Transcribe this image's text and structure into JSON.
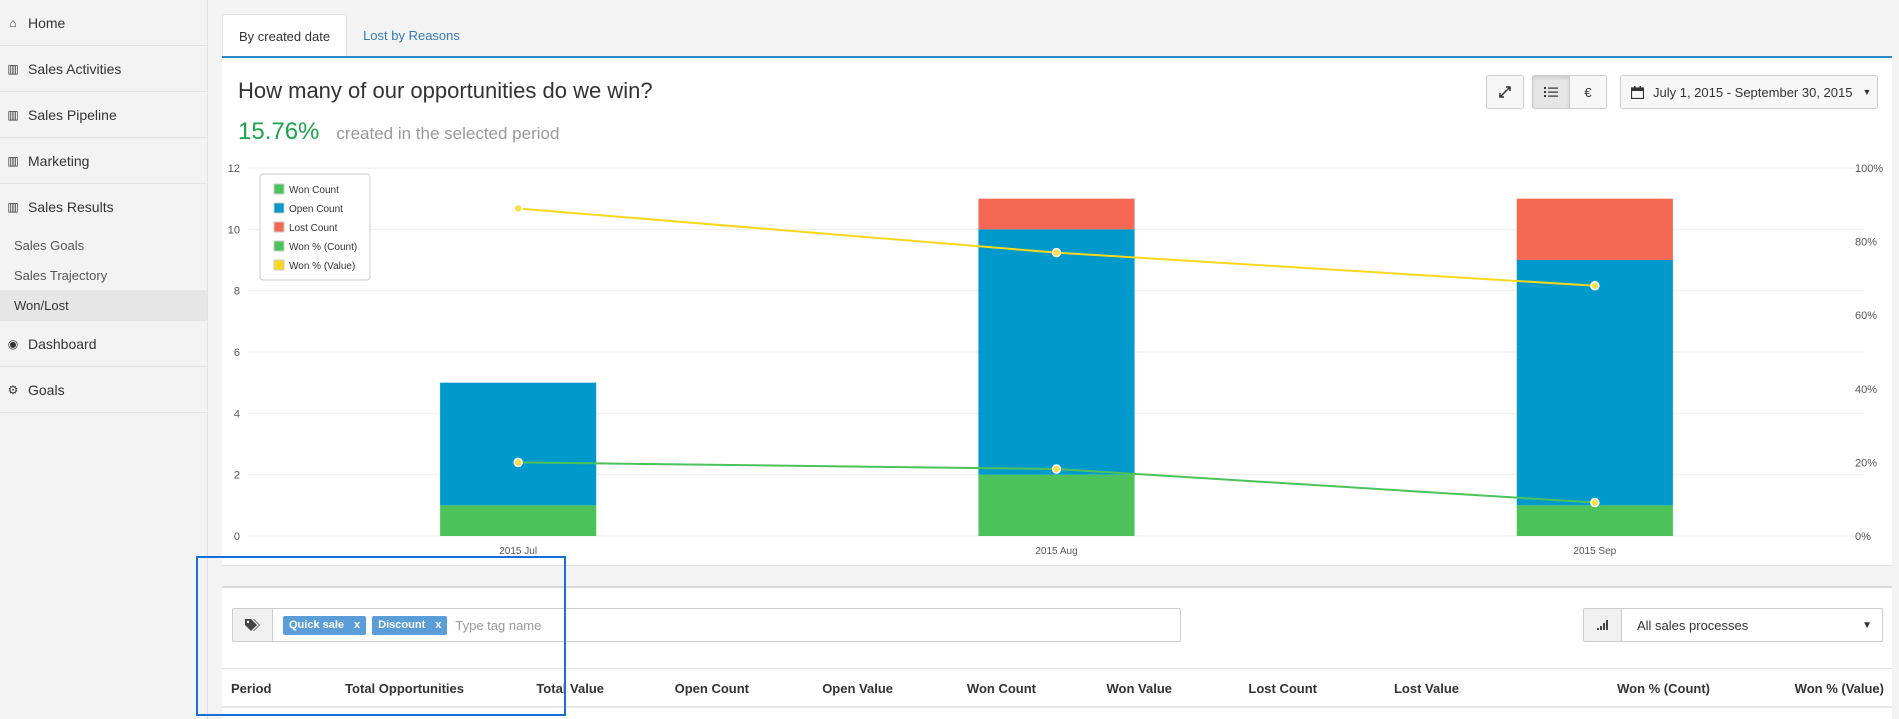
{
  "sidebar": {
    "items": [
      {
        "label": "Home",
        "icon": "home-icon",
        "glyph": "⌂"
      },
      {
        "label": "Sales Activities",
        "icon": "bar-chart-icon",
        "glyph": "▥"
      },
      {
        "label": "Sales Pipeline",
        "icon": "bar-chart-icon",
        "glyph": "▥"
      },
      {
        "label": "Marketing",
        "icon": "bar-chart-icon",
        "glyph": "▥"
      },
      {
        "label": "Sales Results",
        "icon": "bar-chart-icon",
        "glyph": "▥"
      },
      {
        "label": "Dashboard",
        "icon": "dashboard-icon",
        "glyph": "◉"
      },
      {
        "label": "Goals",
        "icon": "cogs-icon",
        "glyph": "⚙"
      }
    ],
    "sub_items": [
      {
        "label": "Sales Goals"
      },
      {
        "label": "Sales Trajectory"
      },
      {
        "label": "Won/Lost",
        "active": true
      }
    ]
  },
  "tabs": [
    {
      "label": "By created date",
      "active": true
    },
    {
      "label": "Lost by Reasons",
      "active": false
    }
  ],
  "panel": {
    "title": "How many of our opportunities do we win?",
    "kpi_value": "15.76%",
    "kpi_text": "created in the selected period",
    "toolbar": {
      "expand_icon": "expand-icon",
      "list_icon": "list-icon",
      "currency_label": "€",
      "date_range": "July 1, 2015 - September 30, 2015",
      "calendar_icon": "calendar-icon"
    }
  },
  "chart_data": {
    "type": "bar",
    "stacked": true,
    "categories": [
      "2015 Jul",
      "2015 Aug",
      "2015 Sep"
    ],
    "series": [
      {
        "name": "Won Count",
        "type": "bar",
        "axis": "left",
        "color": "#4cc25a",
        "values": [
          1,
          2,
          1
        ]
      },
      {
        "name": "Open Count",
        "type": "bar",
        "axis": "left",
        "color": "#0099cc",
        "values": [
          4,
          8,
          8
        ]
      },
      {
        "name": "Lost Count",
        "type": "bar",
        "axis": "left",
        "color": "#f56954",
        "values": [
          0,
          1,
          2
        ]
      },
      {
        "name": "Won % (Count)",
        "type": "line",
        "axis": "right",
        "color": "#4cc25a",
        "values": [
          20,
          18.2,
          9.1
        ]
      },
      {
        "name": "Won % (Value)",
        "type": "line",
        "axis": "right",
        "color": "#f9d71c",
        "values": [
          89,
          77,
          68
        ]
      }
    ],
    "y_left": {
      "min": 0,
      "max": 12,
      "ticks": [
        "0",
        "2",
        "4",
        "6",
        "8",
        "10",
        "12"
      ]
    },
    "y_right": {
      "min": 0,
      "max": 100,
      "ticks": [
        "0%",
        "20%",
        "40%",
        "60%",
        "80%",
        "100%"
      ]
    },
    "grid": true,
    "legend_position": "top-left"
  },
  "filters": {
    "tags_icon": "tags-icon",
    "tags": [
      {
        "label": "Quick sale",
        "remove": "x"
      },
      {
        "label": "Discount",
        "remove": "x"
      }
    ],
    "tag_placeholder": "Type tag name",
    "process_icon": "signal-icon",
    "process_value": "All sales processes",
    "process_caret": "▼"
  },
  "table": {
    "columns": [
      "Period",
      "Total Opportunities",
      "Total Value",
      "Open Count",
      "Open Value",
      "Won Count",
      "Won Value",
      "Lost Count",
      "Lost Value",
      "Won % (Count)",
      "Won % (Value)"
    ]
  },
  "colors": {
    "accent": "#2f8ac2",
    "highlight": "#1a6fd6",
    "kpi": "#1aa54d"
  }
}
